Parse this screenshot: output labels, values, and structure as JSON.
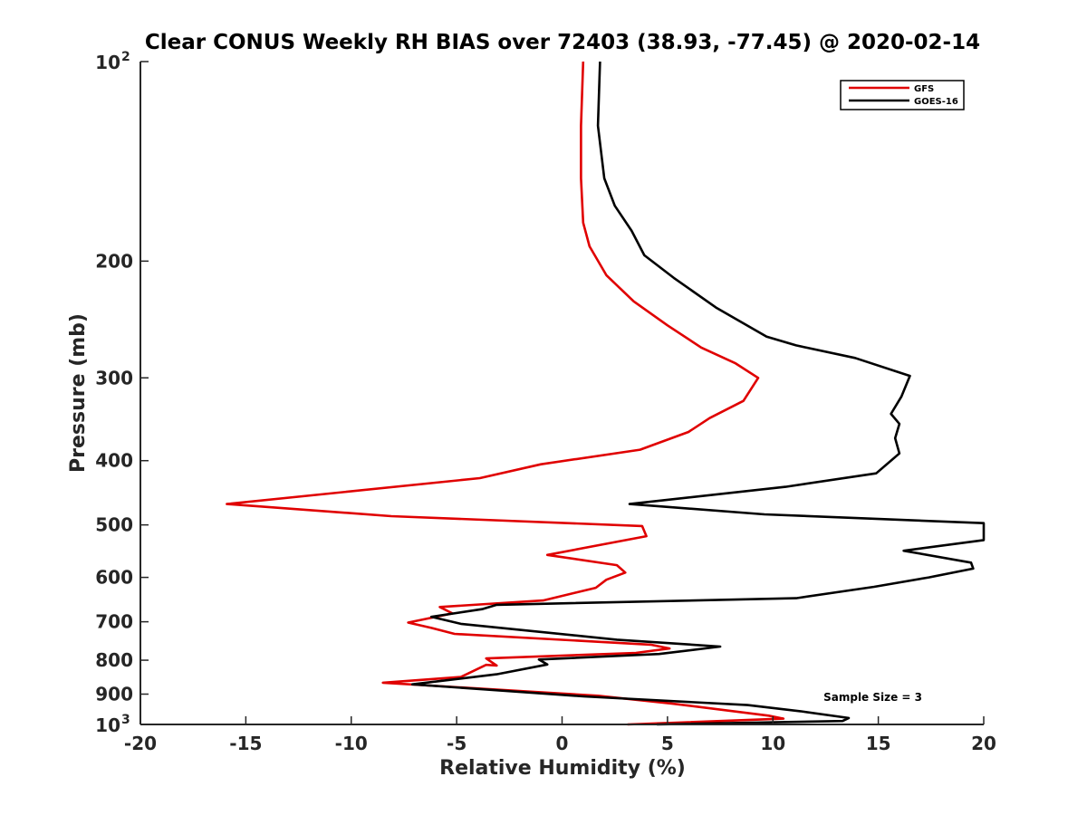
{
  "chart_data": {
    "type": "line",
    "title": "Clear CONUS Weekly RH BIAS over 72403 (38.93, -77.45) @ 2020-02-14",
    "xlabel": "Relative Humidity (%)",
    "ylabel": "Pressure (mb)",
    "xlim": [
      -20,
      20
    ],
    "ylim": [
      100,
      1000
    ],
    "y_scale": "log",
    "y_reversed": true,
    "grid": false,
    "legend_position": "top-right",
    "x_ticks": [
      -20,
      -15,
      -10,
      -5,
      0,
      5,
      10,
      15,
      20
    ],
    "x_tick_labels": [
      "-20",
      "-15",
      "-10",
      "-5",
      "0",
      "5",
      "10",
      "15",
      "20"
    ],
    "y_ticks": [
      100,
      200,
      300,
      400,
      500,
      600,
      700,
      800,
      900,
      1000
    ],
    "y_tick_labels": [
      {
        "base": "10",
        "exp": "2"
      },
      {
        "base": "200",
        "exp": ""
      },
      {
        "base": "300",
        "exp": ""
      },
      {
        "base": "400",
        "exp": ""
      },
      {
        "base": "500",
        "exp": ""
      },
      {
        "base": "600",
        "exp": ""
      },
      {
        "base": "700",
        "exp": ""
      },
      {
        "base": "800",
        "exp": ""
      },
      {
        "base": "900",
        "exp": ""
      },
      {
        "base": "10",
        "exp": "3"
      }
    ],
    "series": [
      {
        "name": "GFS",
        "color": "#e00000",
        "points": [
          [
            1.0,
            100
          ],
          [
            0.9,
            125
          ],
          [
            0.9,
            150
          ],
          [
            1.0,
            175
          ],
          [
            1.3,
            190
          ],
          [
            2.1,
            210
          ],
          [
            3.4,
            230
          ],
          [
            5.0,
            250
          ],
          [
            6.6,
            270
          ],
          [
            8.2,
            285
          ],
          [
            9.3,
            300
          ],
          [
            8.6,
            325
          ],
          [
            7.0,
            345
          ],
          [
            6.0,
            362
          ],
          [
            3.7,
            385
          ],
          [
            -1.0,
            405
          ],
          [
            -3.9,
            425
          ],
          [
            -15.9,
            465
          ],
          [
            -8.1,
            485
          ],
          [
            3.8,
            502
          ],
          [
            4.0,
            520
          ],
          [
            -0.7,
            555
          ],
          [
            2.6,
            575
          ],
          [
            3.0,
            590
          ],
          [
            2.1,
            605
          ],
          [
            1.6,
            622
          ],
          [
            -0.9,
            650
          ],
          [
            -5.8,
            665
          ],
          [
            -5.2,
            680
          ],
          [
            -7.3,
            702
          ],
          [
            -6.2,
            715
          ],
          [
            -5.1,
            730
          ],
          [
            4.2,
            758
          ],
          [
            5.1,
            768
          ],
          [
            3.5,
            780
          ],
          [
            -3.6,
            795
          ],
          [
            -3.1,
            815
          ],
          [
            -3.6,
            813
          ],
          [
            -4.8,
            848
          ],
          [
            -8.5,
            865
          ],
          [
            1.7,
            905
          ],
          [
            5.2,
            930
          ],
          [
            9.8,
            970
          ],
          [
            10.5,
            980
          ],
          [
            3.1,
            1000
          ]
        ]
      },
      {
        "name": "GOES-16",
        "color": "#000000",
        "points": [
          [
            1.8,
            100
          ],
          [
            1.7,
            125
          ],
          [
            2.0,
            150
          ],
          [
            2.5,
            165
          ],
          [
            3.3,
            180
          ],
          [
            3.9,
            196
          ],
          [
            5.3,
            212
          ],
          [
            7.3,
            235
          ],
          [
            9.7,
            260
          ],
          [
            11.1,
            268
          ],
          [
            13.9,
            280
          ],
          [
            16.5,
            298
          ],
          [
            16.1,
            320
          ],
          [
            15.6,
            340
          ],
          [
            16.0,
            352
          ],
          [
            15.8,
            370
          ],
          [
            16.0,
            390
          ],
          [
            14.9,
            418
          ],
          [
            10.6,
            438
          ],
          [
            3.2,
            465
          ],
          [
            9.6,
            482
          ],
          [
            20.0,
            497
          ],
          [
            20.0,
            527
          ],
          [
            16.2,
            547
          ],
          [
            19.4,
            570
          ],
          [
            19.5,
            582
          ],
          [
            17.4,
            600
          ],
          [
            14.8,
            620
          ],
          [
            11.1,
            645
          ],
          [
            -3.1,
            660
          ],
          [
            -3.8,
            670
          ],
          [
            -6.2,
            688
          ],
          [
            -4.8,
            705
          ],
          [
            2.6,
            745
          ],
          [
            7.5,
            763
          ],
          [
            4.6,
            783
          ],
          [
            -1.1,
            798
          ],
          [
            -0.7,
            812
          ],
          [
            -3.1,
            840
          ],
          [
            -7.1,
            870
          ],
          [
            1.0,
            907
          ],
          [
            8.8,
            935
          ],
          [
            11.3,
            955
          ],
          [
            13.6,
            978
          ],
          [
            13.3,
            988
          ],
          [
            4.5,
            1000
          ]
        ]
      }
    ],
    "annotations": [
      {
        "text": "Sample Size = 3",
        "x": 12.4,
        "y": 910
      }
    ]
  }
}
